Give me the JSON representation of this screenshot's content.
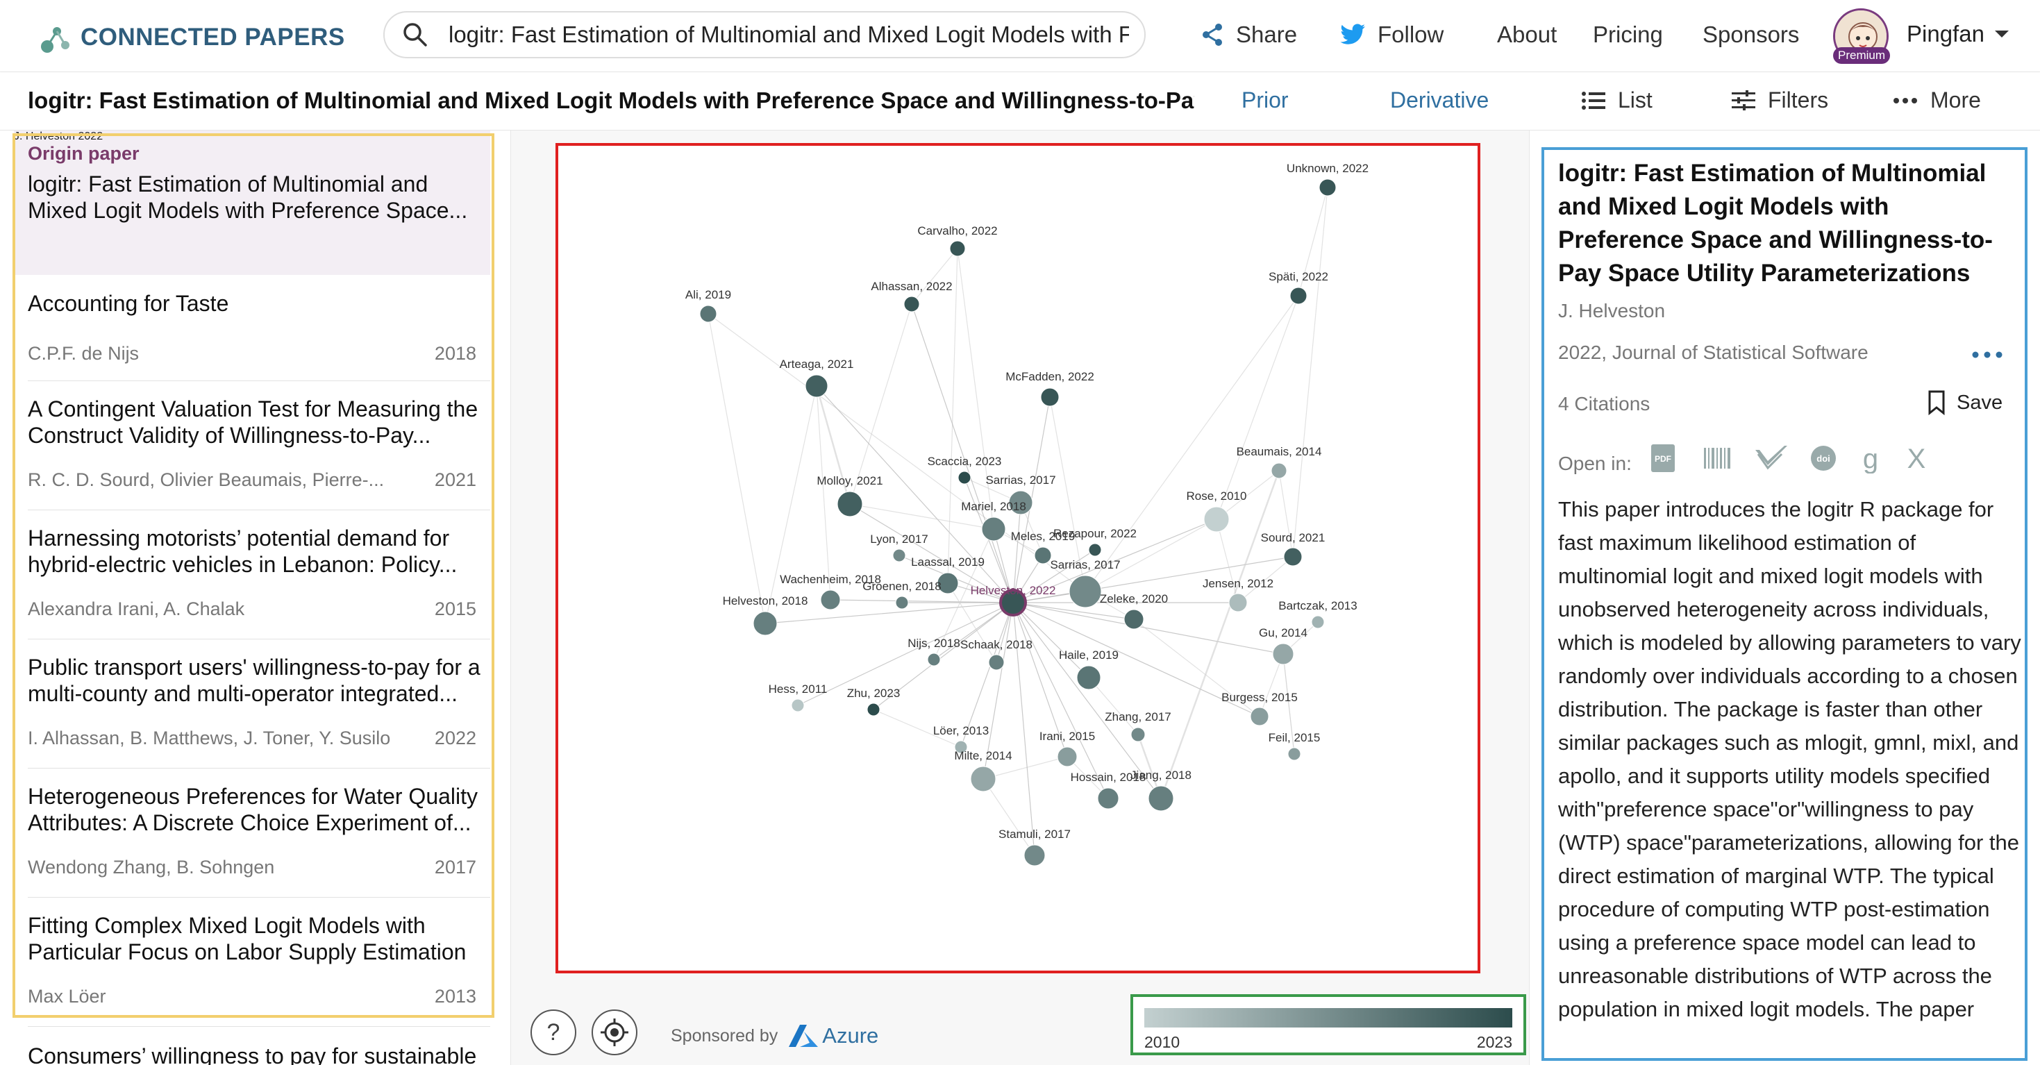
{
  "app": {
    "logo_text": "CONNECTED PAPERS"
  },
  "search": {
    "value": "logitr: Fast Estimation of Multinomial and Mixed Logit Models with F"
  },
  "topnav": {
    "share": "Share",
    "follow": "Follow",
    "about": "About",
    "pricing": "Pricing",
    "sponsors": "Sponsors",
    "premium": "Premium",
    "user": "Pingfan"
  },
  "subbar": {
    "title": "logitr: Fast Estimation of Multinomial and Mixed Logit Models with Preference Space and Willingness-to-Pay Space ...",
    "prior": "Prior",
    "derivative": "Derivative",
    "list": "List",
    "filters": "Filters",
    "more": "More"
  },
  "papers": [
    {
      "label": "Origin paper",
      "title": "logitr: Fast Estimation of Multinomial and Mixed Logit Models with Preference Space...",
      "authors": "J. Helveston",
      "year": "2022"
    },
    {
      "title": "Accounting for Taste",
      "authors": "C.P.F. de Nijs",
      "year": "2018"
    },
    {
      "title": "A Contingent Valuation Test for Measuring the Construct Validity of Willingness-to-Pay...",
      "authors": "R. C. D. Sourd, Olivier Beaumais, Pierre-...",
      "year": "2021"
    },
    {
      "title": "Harnessing motorists’ potential demand for hybrid-electric vehicles in Lebanon: Policy...",
      "authors": "Alexandra Irani, A. Chalak",
      "year": "2015"
    },
    {
      "title": "Public transport users' willingness-to-pay for a multi-county and multi-operator integrated...",
      "authors": "I. Alhassan, B. Matthews, J. Toner, Y. Susilo",
      "year": "2022"
    },
    {
      "title": "Heterogeneous Preferences for Water Quality Attributes: A Discrete Choice Experiment of...",
      "authors": "Wendong Zhang, B. Sohngen",
      "year": "2017"
    },
    {
      "title": "Fitting Complex Mixed Logit Models with Particular Focus on Labor Supply Estimation",
      "authors": "Max Löer",
      "year": "2013"
    },
    {
      "title": "Consumers’ willingness to pay for sustainable",
      "authors": "",
      "year": ""
    }
  ],
  "graph": {
    "nodes": [
      {
        "label": "Unknown, 2022",
        "year": 2022
      },
      {
        "label": "Carvalho, 2022",
        "year": 2022
      },
      {
        "label": "Alhassan, 2022",
        "year": 2022
      },
      {
        "label": "Ali, 2019",
        "year": 2019
      },
      {
        "label": "Späti, 2022",
        "year": 2022
      },
      {
        "label": "Arteaga, 2021",
        "year": 2021
      },
      {
        "label": "McFadden, 2022",
        "year": 2022
      },
      {
        "label": "Scaccia, 2023",
        "year": 2023
      },
      {
        "label": "Beaumais, 2014",
        "year": 2014
      },
      {
        "label": "Molloy, 2021",
        "year": 2021
      },
      {
        "label": "Sarrias, 2017",
        "year": 2017
      },
      {
        "label": "Rose, 2010",
        "year": 2010
      },
      {
        "label": "Mariel, 2018",
        "year": 2018
      },
      {
        "label": "Rezapour, 2022",
        "year": 2022
      },
      {
        "label": "Lyon, 2017",
        "year": 2017
      },
      {
        "label": "Meles, 2019",
        "year": 2019
      },
      {
        "label": "Sourd, 2021",
        "year": 2021
      },
      {
        "label": "Laassal, 2019",
        "year": 2019
      },
      {
        "label": "Sarrias, 2017",
        "year": 2017
      },
      {
        "label": "Wachenheim, 2018",
        "year": 2018
      },
      {
        "label": "Groenen, 2018",
        "year": 2018
      },
      {
        "label": "Helveston, 2022",
        "year": 2022
      },
      {
        "label": "Jensen, 2012",
        "year": 2012
      },
      {
        "label": "Bartczak, 2013",
        "year": 2013
      },
      {
        "label": "Helveston, 2018",
        "year": 2018
      },
      {
        "label": "Zeleke, 2020",
        "year": 2020
      },
      {
        "label": "Gu, 2014",
        "year": 2014
      },
      {
        "label": "Nijs, 2018",
        "year": 2018
      },
      {
        "label": "Schaak, 2018",
        "year": 2018
      },
      {
        "label": "Haile, 2019",
        "year": 2019
      },
      {
        "label": "Hess, 2011",
        "year": 2011
      },
      {
        "label": "Zhu, 2023",
        "year": 2023
      },
      {
        "label": "Burgess, 2015",
        "year": 2015
      },
      {
        "label": "Löer, 2013",
        "year": 2013
      },
      {
        "label": "Zhang, 2017",
        "year": 2017
      },
      {
        "label": "Feil, 2015",
        "year": 2015
      },
      {
        "label": "Irani, 2015",
        "year": 2015
      },
      {
        "label": "Milte, 2014",
        "year": 2014
      },
      {
        "label": "Hossain, 2018",
        "year": 2018
      },
      {
        "label": "Jiang, 2018",
        "year": 2018
      },
      {
        "label": "Stamuli, 2017",
        "year": 2017
      }
    ]
  },
  "legend": {
    "min_label": "2010",
    "max_label": "2023",
    "from_color": "#c3d0d0",
    "to_color": "#2c4c4c"
  },
  "sponsor": {
    "text": "Sponsored by",
    "brand": "Azure"
  },
  "detail": {
    "title": "logitr: Fast Estimation of Multinomial and Mixed Logit Models with Preference Space and Willingness-to-Pay Space Utility Parameterizations",
    "authors": "J. Helveston",
    "venue": "2022, Journal of Statistical Software",
    "citations": "4 Citations",
    "save": "Save",
    "open_in": "Open in:",
    "abstract": "This paper introduces the logitr R package for fast maximum likelihood estimation of multinomial logit and mixed logit models with unobserved heterogeneity across individuals, which is modeled by allowing parameters to vary randomly over individuals according to a chosen distribution. The package is faster than other similar packages such as mlogit, gmnl, mixl, and apollo, and it supports utility models specified with\"preference space\"or\"willingness to pay (WTP) space\"parameterizations, allowing for the direct estimation of marginal WTP. The typical procedure of computing WTP post-estimation using a preference space model can lead to unreasonable distributions of WTP across the population in mixed logit models. The paper"
  },
  "colors": {
    "brand": "#2f5d7c",
    "accent_link": "#2f6fa0",
    "origin_bg": "#f3eef4",
    "origin_label": "#7a3b6a",
    "twitter": "#1d9bf0"
  }
}
